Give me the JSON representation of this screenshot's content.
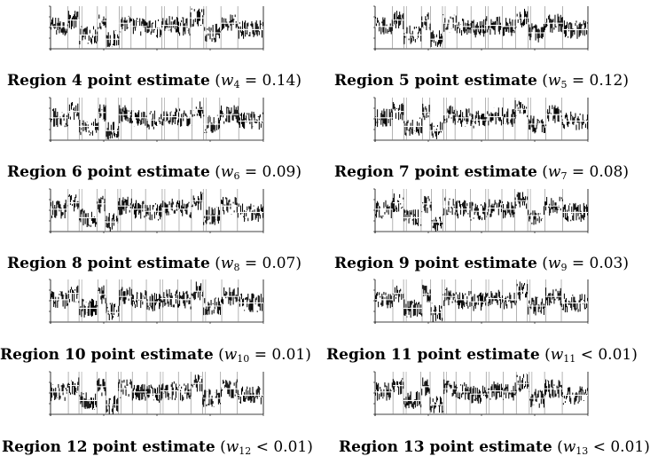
{
  "figure": {
    "panels": [
      {
        "id": "p4",
        "label_bold": "Region 4 point estimate",
        "w_sub": "4",
        "w_rel": "=",
        "w_val": "0.14"
      },
      {
        "id": "p5",
        "label_bold": "Region 5 point estimate",
        "w_sub": "5",
        "w_rel": "=",
        "w_val": "0.12"
      },
      {
        "id": "p6",
        "label_bold": "Region 6 point estimate",
        "w_sub": "6",
        "w_rel": "=",
        "w_val": "0.09"
      },
      {
        "id": "p7",
        "label_bold": "Region 7 point estimate",
        "w_sub": "7",
        "w_rel": "=",
        "w_val": "0.08"
      },
      {
        "id": "p8",
        "label_bold": "Region 8 point estimate",
        "w_sub": "8",
        "w_rel": "=",
        "w_val": "0.07"
      },
      {
        "id": "p9",
        "label_bold": "Region 9 point estimate",
        "w_sub": "9",
        "w_rel": "=",
        "w_val": "0.03"
      },
      {
        "id": "p10",
        "label_bold": "Region 10 point estimate",
        "w_sub": "10",
        "w_rel": "=",
        "w_val": "0.01"
      },
      {
        "id": "p11",
        "label_bold": "Region 11 point estimate",
        "w_sub": "11",
        "w_rel": "<",
        "w_val": "0.01"
      },
      {
        "id": "p12",
        "label_bold": "Region 12 point estimate",
        "w_sub": "12",
        "w_rel": "<",
        "w_val": "0.01"
      },
      {
        "id": "p13",
        "label_bold": "Region 13 point estimate",
        "w_sub": "13",
        "w_rel": "<",
        "w_val": "0.01"
      }
    ]
  },
  "chart_data": {
    "type": "line",
    "xlim": [
      0,
      1
    ],
    "ylim": [
      -1,
      1
    ],
    "grid": false,
    "legend": "none",
    "segment_breaks": [
      0.0,
      0.08,
      0.13,
      0.22,
      0.26,
      0.32,
      0.38,
      0.45,
      0.52,
      0.6,
      0.66,
      0.72,
      0.8,
      0.88,
      1.0
    ],
    "segment_levels": [
      0.05,
      0.35,
      -0.35,
      0.3,
      -0.55,
      0.2,
      0.05,
      -0.05,
      0.1,
      0.05,
      0.45,
      -0.25,
      0.2,
      -0.1
    ],
    "colors": {
      "signal": "#000000",
      "estimate": "#ffffff",
      "boundary": "#808080"
    }
  }
}
